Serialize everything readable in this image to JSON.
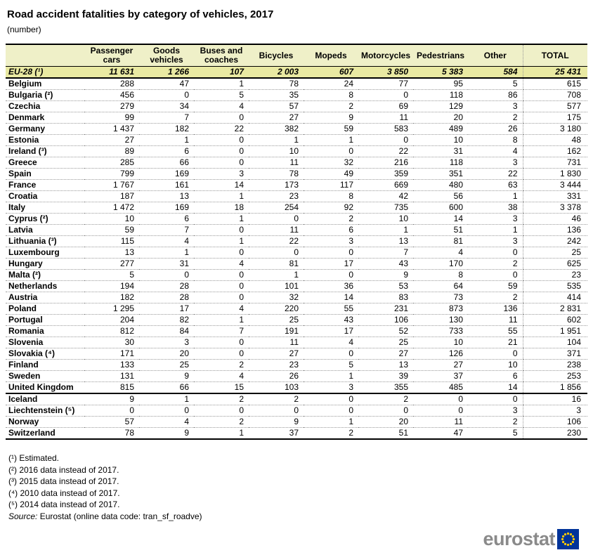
{
  "chart_data": {
    "type": "table",
    "title": "Road accident fatalities by category of vehicles, 2017",
    "subtitle": "(number)",
    "columns": [
      "Passenger cars",
      "Goods vehicles",
      "Buses and coaches",
      "Bicycles",
      "Mopeds",
      "Motorcycles",
      "Pedestrians",
      "Other",
      "TOTAL"
    ],
    "aggregate": {
      "label": "EU-28 (¹)",
      "values": [
        11631,
        1266,
        107,
        2003,
        607,
        3850,
        5383,
        584,
        25431
      ]
    },
    "groups": [
      {
        "name": "eu",
        "rows": [
          {
            "label": "Belgium",
            "values": [
              288,
              47,
              1,
              78,
              24,
              77,
              95,
              5,
              615
            ]
          },
          {
            "label": "Bulgaria (²)",
            "values": [
              456,
              0,
              5,
              35,
              8,
              0,
              118,
              86,
              708
            ]
          },
          {
            "label": "Czechia",
            "values": [
              279,
              34,
              4,
              57,
              2,
              69,
              129,
              3,
              577
            ]
          },
          {
            "label": "Denmark",
            "values": [
              99,
              7,
              0,
              27,
              9,
              11,
              20,
              2,
              175
            ]
          },
          {
            "label": "Germany",
            "values": [
              1437,
              182,
              22,
              382,
              59,
              583,
              489,
              26,
              3180
            ]
          },
          {
            "label": "Estonia",
            "values": [
              27,
              1,
              0,
              1,
              1,
              0,
              10,
              8,
              48
            ]
          },
          {
            "label": "Ireland (³)",
            "values": [
              89,
              6,
              0,
              10,
              0,
              22,
              31,
              4,
              162
            ]
          },
          {
            "label": "Greece",
            "values": [
              285,
              66,
              0,
              11,
              32,
              216,
              118,
              3,
              731
            ]
          },
          {
            "label": "Spain",
            "values": [
              799,
              169,
              3,
              78,
              49,
              359,
              351,
              22,
              1830
            ]
          },
          {
            "label": "France",
            "values": [
              1767,
              161,
              14,
              173,
              117,
              669,
              480,
              63,
              3444
            ]
          },
          {
            "label": "Croatia",
            "values": [
              187,
              13,
              1,
              23,
              8,
              42,
              56,
              1,
              331
            ]
          },
          {
            "label": "Italy",
            "values": [
              1472,
              169,
              18,
              254,
              92,
              735,
              600,
              38,
              3378
            ]
          },
          {
            "label": "Cyprus (²)",
            "values": [
              10,
              6,
              1,
              0,
              2,
              10,
              14,
              3,
              46
            ]
          },
          {
            "label": "Latvia",
            "values": [
              59,
              7,
              0,
              11,
              6,
              1,
              51,
              1,
              136
            ]
          },
          {
            "label": "Lithuania (³)",
            "values": [
              115,
              4,
              1,
              22,
              3,
              13,
              81,
              3,
              242
            ]
          },
          {
            "label": "Luxembourg",
            "values": [
              13,
              1,
              0,
              0,
              0,
              7,
              4,
              0,
              25
            ]
          },
          {
            "label": "Hungary",
            "values": [
              277,
              31,
              4,
              81,
              17,
              43,
              170,
              2,
              625
            ]
          },
          {
            "label": "Malta (²)",
            "values": [
              5,
              0,
              0,
              1,
              0,
              9,
              8,
              0,
              23
            ]
          },
          {
            "label": "Netherlands",
            "values": [
              194,
              28,
              0,
              101,
              36,
              53,
              64,
              59,
              535
            ]
          },
          {
            "label": "Austria",
            "values": [
              182,
              28,
              0,
              32,
              14,
              83,
              73,
              2,
              414
            ]
          },
          {
            "label": "Poland",
            "values": [
              1295,
              17,
              4,
              220,
              55,
              231,
              873,
              136,
              2831
            ]
          },
          {
            "label": "Portugal",
            "values": [
              204,
              82,
              1,
              25,
              43,
              106,
              130,
              11,
              602
            ]
          },
          {
            "label": "Romania",
            "values": [
              812,
              84,
              7,
              191,
              17,
              52,
              733,
              55,
              1951
            ]
          },
          {
            "label": "Slovenia",
            "values": [
              30,
              3,
              0,
              11,
              4,
              25,
              10,
              21,
              104
            ]
          },
          {
            "label": "Slovakia (⁴)",
            "values": [
              171,
              20,
              0,
              27,
              0,
              27,
              126,
              0,
              371
            ]
          },
          {
            "label": "Finland",
            "values": [
              133,
              25,
              2,
              23,
              5,
              13,
              27,
              10,
              238
            ]
          },
          {
            "label": "Sweden",
            "values": [
              131,
              9,
              4,
              26,
              1,
              39,
              37,
              6,
              253
            ]
          },
          {
            "label": "United Kingdom",
            "values": [
              815,
              66,
              15,
              103,
              3,
              355,
              485,
              14,
              1856
            ]
          }
        ]
      },
      {
        "name": "efta",
        "rows": [
          {
            "label": "Iceland",
            "values": [
              9,
              1,
              2,
              2,
              0,
              2,
              0,
              0,
              16
            ]
          },
          {
            "label": "Liechtenstein (⁵)",
            "values": [
              0,
              0,
              0,
              0,
              0,
              0,
              0,
              3,
              3
            ]
          },
          {
            "label": "Norway",
            "values": [
              57,
              4,
              2,
              9,
              1,
              20,
              11,
              2,
              106
            ]
          },
          {
            "label": "Switzerland",
            "values": [
              78,
              9,
              1,
              37,
              2,
              51,
              47,
              5,
              230
            ]
          }
        ]
      }
    ],
    "layout": {
      "grid": "dotted row separators, dotted divider before TOTAL column, solid black rules around header, EU-28 aggregate row and after United Kingdom"
    }
  },
  "footnotes": [
    "(¹) Estimated.",
    "(²) 2016 data instead of 2017.",
    "(³) 2015 data instead of 2017.",
    "(⁴) 2010 data instead of 2017.",
    "(⁵) 2014 data instead of 2017."
  ],
  "source": {
    "label": "Source:",
    "text": "Eurostat (online data code: tran_sf_roadve)"
  },
  "logo": {
    "text": "eurostat"
  },
  "colors": {
    "header_bg": "#eff0c8",
    "aggregate_row_bg": "#e9e9a2",
    "logo_gray": "#8a8a8a",
    "eu_flag_blue": "#003399",
    "eu_flag_star_yellow": "#ffcc00"
  }
}
